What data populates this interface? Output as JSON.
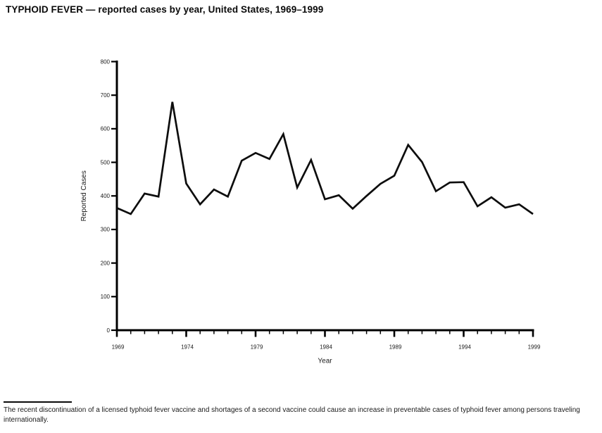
{
  "page": {
    "title": "TYPHOID FEVER — reported cases by year, United States, 1969–1999",
    "footnote": "The recent discontinuation of a licensed typhoid fever vaccine and shortages of a second vaccine could cause an increase in preventable cases of typhoid fever among persons traveling internationally."
  },
  "chart_data": {
    "type": "line",
    "title": "TYPHOID FEVER — reported cases by year, United States, 1969–1999",
    "xlabel": "Year",
    "ylabel": "Reported Cases",
    "xlim": [
      1969,
      1999
    ],
    "ylim": [
      0,
      800
    ],
    "grid": false,
    "legend": null,
    "line_color": "#0d0d0d",
    "axis_color": "#000000",
    "xtick_labels": [
      1969,
      1974,
      1979,
      1984,
      1989,
      1994,
      1999
    ],
    "ytick_labels": [
      0,
      100,
      200,
      300,
      400,
      500,
      600,
      700,
      800
    ],
    "x": [
      1969,
      1970,
      1971,
      1972,
      1973,
      1974,
      1975,
      1976,
      1977,
      1978,
      1979,
      1980,
      1981,
      1982,
      1983,
      1984,
      1985,
      1986,
      1987,
      1988,
      1989,
      1990,
      1991,
      1992,
      1993,
      1994,
      1995,
      1996,
      1997,
      1998,
      1999
    ],
    "values": [
      364,
      346,
      407,
      398,
      680,
      437,
      375,
      419,
      398,
      505,
      528,
      510,
      584,
      425,
      507,
      390,
      402,
      362,
      400,
      436,
      460,
      552,
      501,
      414,
      440,
      441,
      369,
      396,
      365,
      375,
      346
    ]
  }
}
